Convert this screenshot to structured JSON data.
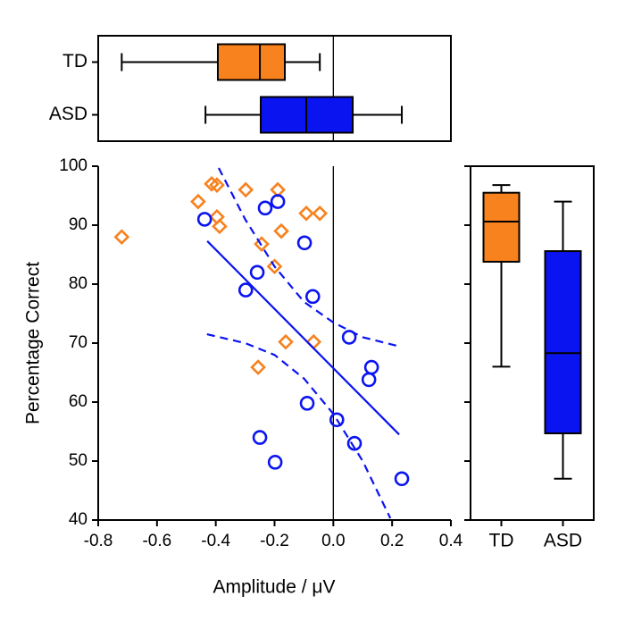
{
  "chart_data": [
    {
      "type": "box",
      "orientation": "horizontal",
      "categories": [
        "TD",
        "ASD"
      ],
      "boxes": [
        {
          "min": -0.72,
          "q1": -0.393,
          "median": -0.25,
          "q3": -0.165,
          "max": -0.046,
          "color": "#f7821e"
        },
        {
          "min": -0.435,
          "q1": -0.247,
          "median": -0.092,
          "q3": 0.066,
          "max": 0.233,
          "color": "#0a14f0"
        }
      ],
      "xlim": [
        -0.8,
        0.4
      ],
      "xline": 0
    },
    {
      "type": "scatter",
      "x_label": "Amplitude / μV",
      "y_label": "Percentage Correct",
      "xlim": [
        -0.8,
        0.4
      ],
      "ylim": [
        40,
        100
      ],
      "xticks": [
        -0.8,
        -0.6,
        -0.4,
        -0.2,
        {
          "value": 0,
          "label": "0.0"
        },
        0.2,
        0.4
      ],
      "yticks": [
        40,
        50,
        60,
        70,
        80,
        90,
        100
      ],
      "xline": 0,
      "series": [
        {
          "kind": "points",
          "marker": "diamond",
          "color": "#f7821e",
          "x": [
            -0.72,
            -0.46,
            -0.414,
            -0.396,
            -0.396,
            -0.387,
            -0.298,
            -0.244,
            -0.189,
            -0.2,
            -0.177,
            -0.092,
            -0.046,
            -0.162,
            -0.067,
            -0.256
          ],
          "values": [
            88,
            94,
            97,
            96.8,
            91.4,
            89.8,
            96,
            86.8,
            96,
            83,
            89,
            92,
            92,
            70.2,
            70.2,
            65.9
          ]
        },
        {
          "kind": "points",
          "marker": "circle",
          "color": "#0a14f0",
          "x": [
            -0.438,
            -0.232,
            -0.189,
            -0.098,
            -0.259,
            -0.298,
            -0.07,
            0.054,
            0.13,
            0.121,
            -0.089,
            0.012,
            0.072,
            -0.25,
            -0.198,
            0.233
          ],
          "values": [
            91,
            92.9,
            94,
            87,
            82,
            79,
            77.9,
            71,
            65.9,
            63.8,
            59.8,
            57,
            53,
            54,
            49.8,
            47
          ]
        },
        {
          "kind": "line",
          "dash": false,
          "color": "#0a14f0",
          "x": [
            -0.429,
            0.224
          ],
          "values": [
            87.3,
            54.5
          ]
        },
        {
          "kind": "line",
          "dash": true,
          "color": "#0a14f0",
          "x": [
            -0.39,
            -0.3,
            -0.2,
            -0.1,
            0,
            0.1,
            0.22
          ],
          "values": [
            99.7,
            91,
            83,
            77,
            73.5,
            71,
            69.5
          ]
        },
        {
          "kind": "line",
          "dash": true,
          "color": "#0a14f0",
          "x": [
            -0.43,
            -0.3,
            -0.2,
            -0.1,
            0,
            0.1,
            0.194
          ],
          "values": [
            71.5,
            70,
            68,
            64,
            58,
            50,
            40.3
          ]
        }
      ]
    },
    {
      "type": "box",
      "orientation": "vertical",
      "categories": [
        "TD",
        "ASD"
      ],
      "boxes": [
        {
          "min": 66,
          "q1": 83.8,
          "median": 90.6,
          "q3": 95.5,
          "max": 96.8,
          "color": "#f7821e"
        },
        {
          "min": 47,
          "q1": 54.7,
          "median": 68.3,
          "q3": 85.6,
          "max": 94,
          "color": "#0a14f0"
        }
      ],
      "ylim": [
        40,
        100
      ],
      "yticks": [
        40,
        50,
        60,
        70,
        80,
        90,
        100
      ]
    }
  ]
}
